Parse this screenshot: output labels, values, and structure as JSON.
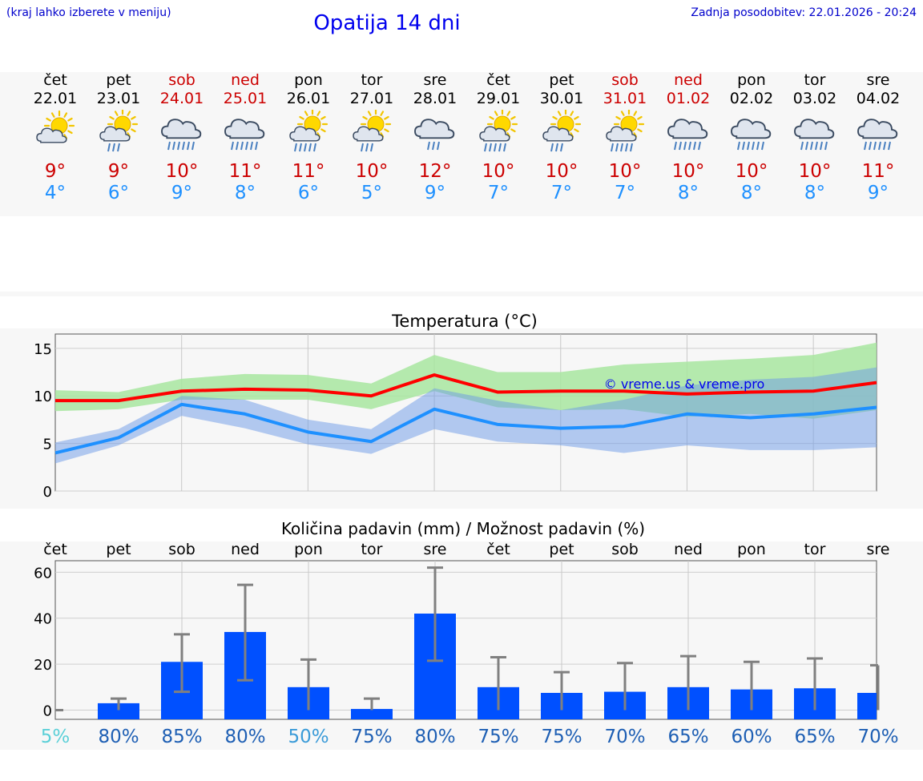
{
  "header": {
    "hint": "(kraj lahko izberete v meniju)",
    "title": "Opatija 14 dni",
    "updated": "Zadnja posodobitev: 22.01.2026 - 20:24"
  },
  "days": [
    {
      "name": "čet",
      "date": "22.01",
      "weekend": false,
      "icon": "partly-cloudy-icon",
      "max": "9°",
      "min": "4°"
    },
    {
      "name": "pet",
      "date": "23.01",
      "weekend": false,
      "icon": "sun-cloud-light-rain-icon",
      "max": "9°",
      "min": "6°"
    },
    {
      "name": "sob",
      "date": "24.01",
      "weekend": true,
      "icon": "rain-cloud-icon",
      "max": "10°",
      "min": "9°"
    },
    {
      "name": "ned",
      "date": "25.01",
      "weekend": true,
      "icon": "rain-cloud-icon",
      "max": "11°",
      "min": "8°"
    },
    {
      "name": "pon",
      "date": "26.01",
      "weekend": false,
      "icon": "sun-cloud-rain-icon",
      "max": "11°",
      "min": "6°"
    },
    {
      "name": "tor",
      "date": "27.01",
      "weekend": false,
      "icon": "sun-cloud-light-rain-icon",
      "max": "10°",
      "min": "5°"
    },
    {
      "name": "sre",
      "date": "28.01",
      "weekend": false,
      "icon": "cloud-light-rain-icon",
      "max": "12°",
      "min": "9°"
    },
    {
      "name": "čet",
      "date": "29.01",
      "weekend": false,
      "icon": "sun-cloud-rain-icon",
      "max": "10°",
      "min": "7°"
    },
    {
      "name": "pet",
      "date": "30.01",
      "weekend": false,
      "icon": "sun-cloud-light-rain-icon",
      "max": "10°",
      "min": "7°"
    },
    {
      "name": "sob",
      "date": "31.01",
      "weekend": true,
      "icon": "sun-cloud-rain-icon",
      "max": "10°",
      "min": "7°"
    },
    {
      "name": "ned",
      "date": "01.02",
      "weekend": true,
      "icon": "rain-cloud-icon",
      "max": "10°",
      "min": "8°"
    },
    {
      "name": "pon",
      "date": "02.02",
      "weekend": false,
      "icon": "rain-cloud-icon",
      "max": "10°",
      "min": "8°"
    },
    {
      "name": "tor",
      "date": "03.02",
      "weekend": false,
      "icon": "rain-cloud-icon",
      "max": "10°",
      "min": "8°"
    },
    {
      "name": "sre",
      "date": "04.02",
      "weekend": false,
      "icon": "rain-cloud-icon",
      "max": "11°",
      "min": "9°"
    }
  ],
  "chart_data": [
    {
      "type": "line",
      "title": "Temperatura (°C)",
      "watermark": "© vreme.us & vreme.pro",
      "x": [
        "22.01",
        "23.01",
        "24.01",
        "25.01",
        "26.01",
        "27.01",
        "28.01",
        "29.01",
        "30.01",
        "31.01",
        "01.02",
        "02.02",
        "03.02",
        "04.02"
      ],
      "ylim": [
        0,
        16.5
      ],
      "yticks": [
        0,
        5,
        10,
        15
      ],
      "series": [
        {
          "name": "max",
          "color": "#ff0000",
          "values": [
            9.5,
            9.5,
            10.5,
            10.7,
            10.6,
            10.0,
            12.2,
            10.4,
            10.5,
            10.5,
            10.2,
            10.4,
            10.5,
            11.4
          ]
        },
        {
          "name": "max-range-upper",
          "color": "#a8e6a0",
          "values": [
            10.6,
            10.4,
            11.8,
            12.3,
            12.2,
            11.3,
            14.3,
            12.5,
            12.5,
            13.3,
            13.6,
            13.9,
            14.3,
            15.6
          ]
        },
        {
          "name": "max-range-lower",
          "color": "#a8e6a0",
          "values": [
            8.4,
            8.6,
            9.6,
            9.6,
            9.6,
            8.6,
            10.5,
            8.8,
            8.5,
            8.6,
            7.8,
            8.1,
            7.6,
            8.5
          ]
        },
        {
          "name": "min",
          "color": "#1e90ff",
          "values": [
            4.0,
            5.6,
            9.1,
            8.1,
            6.2,
            5.2,
            8.6,
            7.0,
            6.6,
            6.8,
            8.1,
            7.7,
            8.1,
            8.8
          ]
        },
        {
          "name": "min-range-upper",
          "color": "#a9c4f0",
          "values": [
            5.1,
            6.5,
            10.0,
            9.6,
            7.5,
            6.5,
            10.8,
            9.5,
            8.5,
            9.6,
            11.1,
            11.7,
            12.0,
            13.0
          ]
        },
        {
          "name": "min-range-lower",
          "color": "#a9c4f0",
          "values": [
            2.9,
            4.8,
            7.9,
            6.6,
            4.9,
            3.9,
            6.5,
            5.2,
            4.8,
            4.0,
            4.8,
            4.3,
            4.3,
            4.6
          ]
        }
      ]
    },
    {
      "type": "bar",
      "title": "Količina padavin (mm) / Možnost padavin (%)",
      "categories": [
        "čet",
        "pet",
        "sob",
        "ned",
        "pon",
        "tor",
        "sre",
        "čet",
        "pet",
        "sob",
        "ned",
        "pon",
        "tor",
        "sre"
      ],
      "ylim": [
        -4,
        65
      ],
      "yticks": [
        0,
        20,
        40,
        60
      ],
      "values": [
        0,
        3,
        21,
        34,
        10,
        0.5,
        42,
        10,
        7.5,
        8,
        10,
        9,
        9.5,
        7.5
      ],
      "error_low": [
        0,
        0,
        8,
        13,
        0,
        0,
        21.5,
        0,
        0,
        0,
        0,
        0,
        0,
        0
      ],
      "error_high": [
        0,
        5,
        33,
        54.5,
        22,
        5,
        62,
        23,
        16.5,
        20.5,
        23.5,
        21,
        22.5,
        19.5
      ],
      "probability": [
        "5%",
        "80%",
        "85%",
        "80%",
        "50%",
        "75%",
        "80%",
        "75%",
        "75%",
        "70%",
        "65%",
        "60%",
        "65%",
        "70%"
      ],
      "probability_colors": [
        "#5bd0d8",
        "#1e5fb4",
        "#1e5fb4",
        "#1e5fb4",
        "#3a9bd8",
        "#1e5fb4",
        "#1e5fb4",
        "#1e5fb4",
        "#1e5fb4",
        "#1e5fb4",
        "#1e5fb4",
        "#1e5fb4",
        "#1e5fb4",
        "#1e5fb4"
      ],
      "bar_color": "#0050ff"
    }
  ]
}
